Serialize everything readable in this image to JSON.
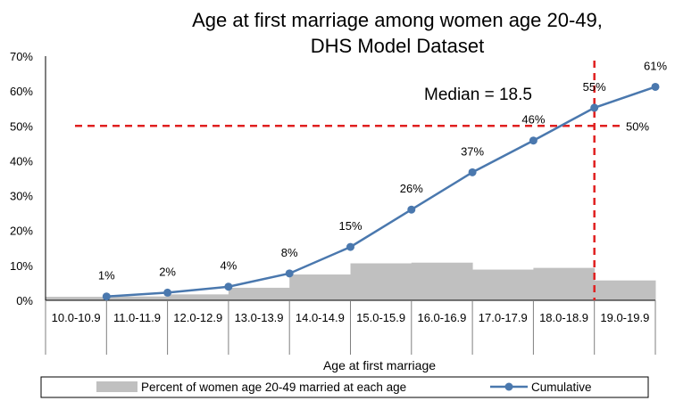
{
  "chart_data": {
    "type": "bar+line",
    "title_line1": "Age at first marriage among women age 20-49,",
    "title_line2": "DHS Model Dataset",
    "xlabel": "Age at first marriage",
    "ylabel": "",
    "ylim": [
      0,
      70
    ],
    "y_ticks": [
      "0%",
      "10%",
      "20%",
      "30%",
      "40%",
      "50%",
      "60%",
      "70%"
    ],
    "categories": [
      "10.0-10.9",
      "11.0-11.9",
      "12.0-12.9",
      "13.0-13.9",
      "14.0-14.9",
      "15.0-15.9",
      "16.0-16.9",
      "17.0-17.9",
      "18.0-18.9",
      "19.0-19.9"
    ],
    "series": [
      {
        "name": "Percent of women age 20-49 married at each age",
        "type": "area-bar",
        "color": "#c0c0c0",
        "values": [
          1.0,
          1.1,
          1.7,
          3.6,
          7.4,
          10.6,
          10.8,
          8.8,
          9.3,
          5.7
        ]
      },
      {
        "name": "Cumulative",
        "type": "line",
        "color": "#4a78ae",
        "values": [
          1.1,
          2.2,
          3.9,
          7.7,
          15.3,
          26.0,
          36.7,
          45.8,
          55.2,
          61.2
        ],
        "labels": [
          "1%",
          "2%",
          "4%",
          "8%",
          "15%",
          "26%",
          "37%",
          "46%",
          "55%",
          "61%"
        ]
      }
    ],
    "reference_lines": {
      "horizontal_value": 50,
      "horizontal_label": "50%",
      "vertical_value": 18.5,
      "median_label": "Median = 18.5",
      "color": "#e02020"
    },
    "legend_position": "bottom",
    "grid": false
  }
}
